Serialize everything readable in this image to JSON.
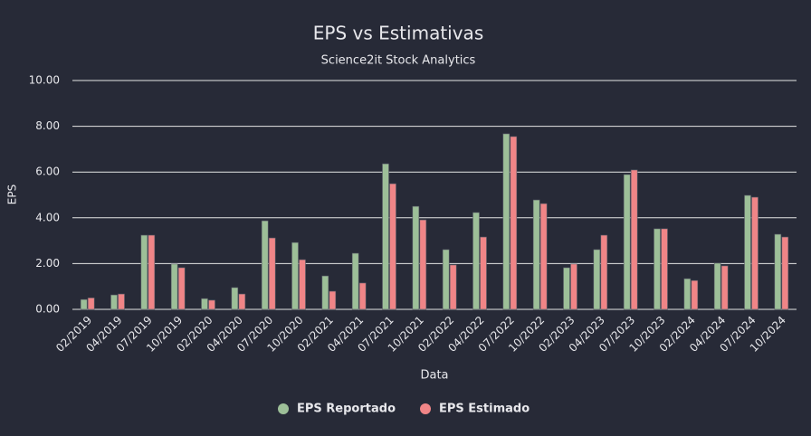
{
  "chart_data": {
    "type": "bar",
    "title": "EPS vs Estimativas",
    "subtitle": "Science2it Stock Analytics",
    "x_label": "Data",
    "y_label": "EPS",
    "categories": [
      "02/2019",
      "04/2019",
      "07/2019",
      "10/2019",
      "02/2020",
      "04/2020",
      "07/2020",
      "10/2020",
      "02/2021",
      "04/2021",
      "07/2021",
      "10/2021",
      "02/2022",
      "04/2022",
      "07/2022",
      "10/2022",
      "02/2023",
      "04/2023",
      "07/2023",
      "10/2023",
      "02/2024",
      "04/2024",
      "07/2024",
      "10/2024"
    ],
    "series": [
      {
        "name": "EPS Reportado",
        "color": "#9dbf98",
        "values": [
          0.43,
          0.63,
          3.24,
          1.98,
          0.47,
          0.95,
          3.87,
          2.92,
          1.46,
          2.45,
          6.36,
          4.5,
          2.61,
          4.23,
          7.67,
          4.78,
          1.82,
          2.61,
          5.89,
          3.52,
          1.34,
          2.02,
          4.98,
          3.28
        ]
      },
      {
        "name": "EPS Estimado",
        "color": "#f08587",
        "values": [
          0.5,
          0.67,
          3.24,
          1.82,
          0.4,
          0.67,
          3.12,
          2.17,
          0.79,
          1.15,
          5.49,
          3.91,
          1.94,
          3.16,
          7.55,
          4.62,
          1.98,
          3.24,
          6.09,
          3.52,
          1.26,
          1.9,
          4.9,
          3.16
        ]
      }
    ],
    "ylim": [
      0,
      10
    ],
    "yticks": [
      {
        "value": 0,
        "label": "0.00"
      },
      {
        "value": 2,
        "label": "2.00"
      },
      {
        "value": 4,
        "label": "4.00"
      },
      {
        "value": 6,
        "label": "6.00"
      },
      {
        "value": 8,
        "label": "8.00"
      },
      {
        "value": 10,
        "label": "10.00"
      }
    ],
    "grid": true,
    "legend": "bottom"
  }
}
